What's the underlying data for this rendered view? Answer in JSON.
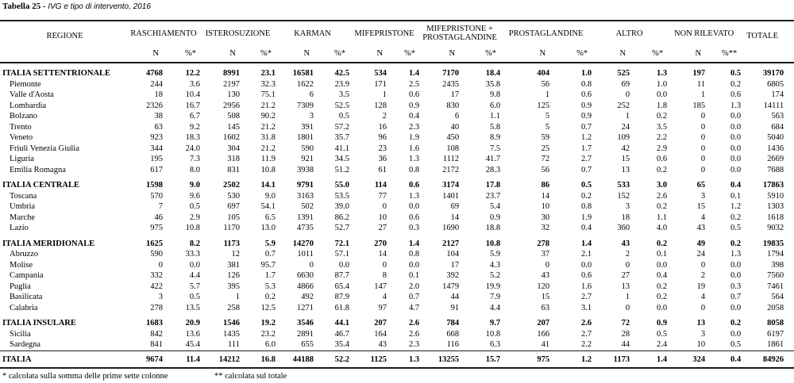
{
  "title": {
    "prefix": "Tabella 25 -",
    "subject": "IVG e tipo di intervento, 2016"
  },
  "table": {
    "region_header": "REGIONE",
    "col_groups": [
      {
        "label": "RASCHIAMENTO",
        "sub": [
          "N",
          "%*"
        ]
      },
      {
        "label": "ISTEROSUZIONE",
        "sub": [
          "N",
          "%*"
        ]
      },
      {
        "label": "KARMAN",
        "sub": [
          "N",
          "%*"
        ]
      },
      {
        "label": "MIFEPRISTONE",
        "sub": [
          "N",
          "%*"
        ]
      },
      {
        "label": "MIFEPRISTONE + PROSTAGLANDINE",
        "sub": [
          "N",
          "%*"
        ]
      },
      {
        "label": "PROSTAGLANDINE",
        "sub": [
          "N",
          "%*"
        ]
      },
      {
        "label": "ALTRO",
        "sub": [
          "N",
          "%*"
        ]
      },
      {
        "label": "NON RILEVATO",
        "sub": [
          "N",
          "%**"
        ]
      },
      {
        "label": "TOTALE",
        "sub": []
      }
    ],
    "rows": [
      {
        "region": "ITALIA SETTENTRIONALE",
        "type": "group",
        "values": [
          "4768",
          "12.2",
          "8991",
          "23.1",
          "16581",
          "42.5",
          "534",
          "1.4",
          "7170",
          "18.4",
          "404",
          "1.0",
          "525",
          "1.3",
          "197",
          "0.5",
          "39170"
        ]
      },
      {
        "region": "Piemonte",
        "type": "sub",
        "values": [
          "244",
          "3.6",
          "2197",
          "32.3",
          "1622",
          "23.9",
          "171",
          "2.5",
          "2435",
          "35.8",
          "56",
          "0.8",
          "69",
          "1.0",
          "11",
          "0.2",
          "6805"
        ]
      },
      {
        "region": "Valle d'Aosta",
        "type": "sub",
        "values": [
          "18",
          "10.4",
          "130",
          "75.1",
          "6",
          "3.5",
          "1",
          "0.6",
          "17",
          "9.8",
          "1",
          "0.6",
          "0",
          "0.0",
          "1",
          "0.6",
          "174"
        ]
      },
      {
        "region": "Lombardia",
        "type": "sub",
        "values": [
          "2326",
          "16.7",
          "2956",
          "21.2",
          "7309",
          "52.5",
          "128",
          "0.9",
          "830",
          "6.0",
          "125",
          "0.9",
          "252",
          "1.8",
          "185",
          "1.3",
          "14111"
        ]
      },
      {
        "region": "Bolzano",
        "type": "sub",
        "values": [
          "38",
          "6.7",
          "508",
          "90.2",
          "3",
          "0.5",
          "2",
          "0.4",
          "6",
          "1.1",
          "5",
          "0.9",
          "1",
          "0.2",
          "0",
          "0.0",
          "563"
        ]
      },
      {
        "region": "Trento",
        "type": "sub",
        "values": [
          "63",
          "9.2",
          "145",
          "21.2",
          "391",
          "57.2",
          "16",
          "2.3",
          "40",
          "5.8",
          "5",
          "0.7",
          "24",
          "3.5",
          "0",
          "0.0",
          "684"
        ]
      },
      {
        "region": "Veneto",
        "type": "sub",
        "values": [
          "923",
          "18.3",
          "1602",
          "31.8",
          "1801",
          "35.7",
          "96",
          "1.9",
          "450",
          "8.9",
          "59",
          "1.2",
          "109",
          "2.2",
          "0",
          "0.0",
          "5040"
        ]
      },
      {
        "region": "Friuli Venezia Giulia",
        "type": "sub",
        "values": [
          "344",
          "24.0",
          "304",
          "21.2",
          "590",
          "41.1",
          "23",
          "1.6",
          "108",
          "7.5",
          "25",
          "1.7",
          "42",
          "2.9",
          "0",
          "0.0",
          "1436"
        ]
      },
      {
        "region": "Liguria",
        "type": "sub",
        "values": [
          "195",
          "7.3",
          "318",
          "11.9",
          "921",
          "34.5",
          "36",
          "1.3",
          "1112",
          "41.7",
          "72",
          "2.7",
          "15",
          "0.6",
          "0",
          "0.0",
          "2669"
        ]
      },
      {
        "region": "Emilia Romagna",
        "type": "sub",
        "values": [
          "617",
          "8.0",
          "831",
          "10.8",
          "3938",
          "51.2",
          "61",
          "0.8",
          "2172",
          "28.3",
          "56",
          "0.7",
          "13",
          "0.2",
          "0",
          "0.0",
          "7688"
        ]
      },
      {
        "region": "ITALIA CENTRALE",
        "type": "group",
        "values": [
          "1598",
          "9.0",
          "2502",
          "14.1",
          "9791",
          "55.0",
          "114",
          "0.6",
          "3174",
          "17.8",
          "86",
          "0.5",
          "533",
          "3.0",
          "65",
          "0.4",
          "17863"
        ]
      },
      {
        "region": "Toscana",
        "type": "sub",
        "values": [
          "570",
          "9.6",
          "530",
          "9.0",
          "3163",
          "53.5",
          "77",
          "1.3",
          "1401",
          "23.7",
          "14",
          "0.2",
          "152",
          "2.6",
          "3",
          "0.1",
          "5910"
        ]
      },
      {
        "region": "Umbria",
        "type": "sub",
        "values": [
          "7",
          "0.5",
          "697",
          "54.1",
          "502",
          "39.0",
          "0",
          "0.0",
          "69",
          "5.4",
          "10",
          "0.8",
          "3",
          "0.2",
          "15",
          "1.2",
          "1303"
        ]
      },
      {
        "region": "Marche",
        "type": "sub",
        "values": [
          "46",
          "2.9",
          "105",
          "6.5",
          "1391",
          "86.2",
          "10",
          "0.6",
          "14",
          "0.9",
          "30",
          "1.9",
          "18",
          "1.1",
          "4",
          "0.2",
          "1618"
        ]
      },
      {
        "region": "Lazio",
        "type": "sub",
        "values": [
          "975",
          "10.8",
          "1170",
          "13.0",
          "4735",
          "52.7",
          "27",
          "0.3",
          "1690",
          "18.8",
          "32",
          "0.4",
          "360",
          "4.0",
          "43",
          "0.5",
          "9032"
        ]
      },
      {
        "region": "ITALIA MERIDIONALE",
        "type": "group",
        "values": [
          "1625",
          "8.2",
          "1173",
          "5.9",
          "14270",
          "72.1",
          "270",
          "1.4",
          "2127",
          "10.8",
          "278",
          "1.4",
          "43",
          "0.2",
          "49",
          "0.2",
          "19835"
        ]
      },
      {
        "region": "Abruzzo",
        "type": "sub",
        "values": [
          "590",
          "33.3",
          "12",
          "0.7",
          "1011",
          "57.1",
          "14",
          "0.8",
          "104",
          "5.9",
          "37",
          "2.1",
          "2",
          "0.1",
          "24",
          "1.3",
          "1794"
        ]
      },
      {
        "region": "Molise",
        "type": "sub",
        "values": [
          "0",
          "0.0",
          "381",
          "95.7",
          "0",
          "0.0",
          "0",
          "0.0",
          "17",
          "4.3",
          "0",
          "0.0",
          "0",
          "0.0",
          "0",
          "0.0",
          "398"
        ]
      },
      {
        "region": "Campania",
        "type": "sub",
        "values": [
          "332",
          "4.4",
          "126",
          "1.7",
          "6630",
          "87.7",
          "8",
          "0.1",
          "392",
          "5.2",
          "43",
          "0.6",
          "27",
          "0.4",
          "2",
          "0.0",
          "7560"
        ]
      },
      {
        "region": "Puglia",
        "type": "sub",
        "values": [
          "422",
          "5.7",
          "395",
          "5.3",
          "4866",
          "65.4",
          "147",
          "2.0",
          "1479",
          "19.9",
          "120",
          "1.6",
          "13",
          "0.2",
          "19",
          "0.3",
          "7461"
        ]
      },
      {
        "region": "Basilicata",
        "type": "sub",
        "values": [
          "3",
          "0.5",
          "1",
          "0.2",
          "492",
          "87.9",
          "4",
          "0.7",
          "44",
          "7.9",
          "15",
          "2.7",
          "1",
          "0.2",
          "4",
          "0.7",
          "564"
        ]
      },
      {
        "region": "Calabria",
        "type": "sub",
        "values": [
          "278",
          "13.5",
          "258",
          "12.5",
          "1271",
          "61.8",
          "97",
          "4.7",
          "91",
          "4.4",
          "63",
          "3.1",
          "0",
          "0.0",
          "0",
          "0.0",
          "2058"
        ]
      },
      {
        "region": "ITALIA INSULARE",
        "type": "group",
        "values": [
          "1683",
          "20.9",
          "1546",
          "19.2",
          "3546",
          "44.1",
          "207",
          "2.6",
          "784",
          "9.7",
          "207",
          "2.6",
          "72",
          "0.9",
          "13",
          "0.2",
          "8058"
        ]
      },
      {
        "region": "Sicilia",
        "type": "sub",
        "values": [
          "842",
          "13.6",
          "1435",
          "23.2",
          "2891",
          "46.7",
          "164",
          "2.6",
          "668",
          "10.8",
          "166",
          "2.7",
          "28",
          "0.5",
          "3",
          "0.0",
          "6197"
        ]
      },
      {
        "region": "Sardegna",
        "type": "sub",
        "values": [
          "841",
          "45.4",
          "111",
          "6.0",
          "655",
          "35.4",
          "43",
          "2.3",
          "116",
          "6.3",
          "41",
          "2.2",
          "44",
          "2.4",
          "10",
          "0.5",
          "1861"
        ]
      },
      {
        "region": "ITALIA",
        "type": "total",
        "values": [
          "9674",
          "11.4",
          "14212",
          "16.8",
          "44188",
          "52.2",
          "1125",
          "1.3",
          "13255",
          "15.7",
          "975",
          "1.2",
          "1173",
          "1.4",
          "324",
          "0.4",
          "84926"
        ]
      }
    ]
  },
  "footnotes": [
    "* calcolata sulla somma delle prime sette colonne",
    "** calcolata sul totale"
  ]
}
